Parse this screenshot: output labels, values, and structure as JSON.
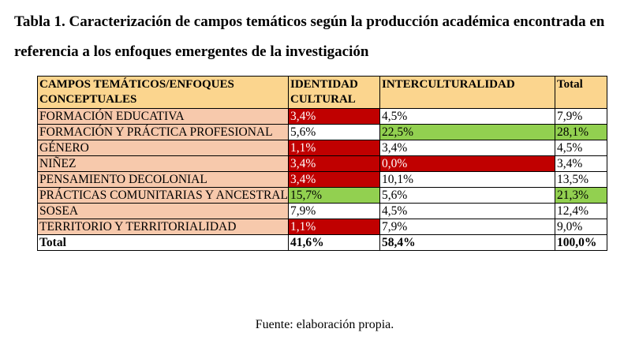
{
  "title": "Tabla 1. Caracterización de campos temáticos según la producción académica encontrada en referencia a los enfoques emergentes de la investigación",
  "table": {
    "headers": {
      "campos": "CAMPOS  TEMÁTICOS/ENFOQUES CONCEPTUALES",
      "identidad": "IDENTIDAD CULTURAL",
      "interculturalidad": "INTERCULTURALIDAD",
      "total": "Total"
    },
    "rows": [
      {
        "category": "FORMACIÓN EDUCATIVA",
        "identidad": "3,4%",
        "interculturalidad": "4,5%",
        "total": "7,9%"
      },
      {
        "category": "FORMACIÓN Y PRÁCTICA PROFESIONAL",
        "identidad": "5,6%",
        "interculturalidad": "22,5%",
        "total": "28,1%"
      },
      {
        "category": "GÉNERO",
        "identidad": "1,1%",
        "interculturalidad": "3,4%",
        "total": "4,5%"
      },
      {
        "category": "NIÑEZ",
        "identidad": "3,4%",
        "interculturalidad": "0,0%",
        "total": "3,4%"
      },
      {
        "category": "PENSAMIENTO DECOLONIAL",
        "identidad": "3,4%",
        "interculturalidad": "10,1%",
        "total": "13,5%"
      },
      {
        "category": "PRÁCTICAS COMUNITARIAS Y ANCESTRALES",
        "identidad": "15,7%",
        "interculturalidad": "5,6%",
        "total": "21,3%"
      },
      {
        "category": "SOSEA",
        "identidad": "7,9%",
        "interculturalidad": "4,5%",
        "total": "12,4%"
      },
      {
        "category": "TERRITORIO Y TERRITORIALIDAD",
        "identidad": "1,1%",
        "interculturalidad": "7,9%",
        "total": "9,0%"
      }
    ],
    "total_row": {
      "category": "Total",
      "identidad": "41,6%",
      "interculturalidad": "58,4%",
      "total": "100,0%"
    }
  },
  "source": "Fuente: elaboración propia.",
  "colors": {
    "header_bg": "#fbd58e",
    "category_bg": "#f7c9ac",
    "highlight_red": "#c00000",
    "highlight_green": "#92d050"
  }
}
